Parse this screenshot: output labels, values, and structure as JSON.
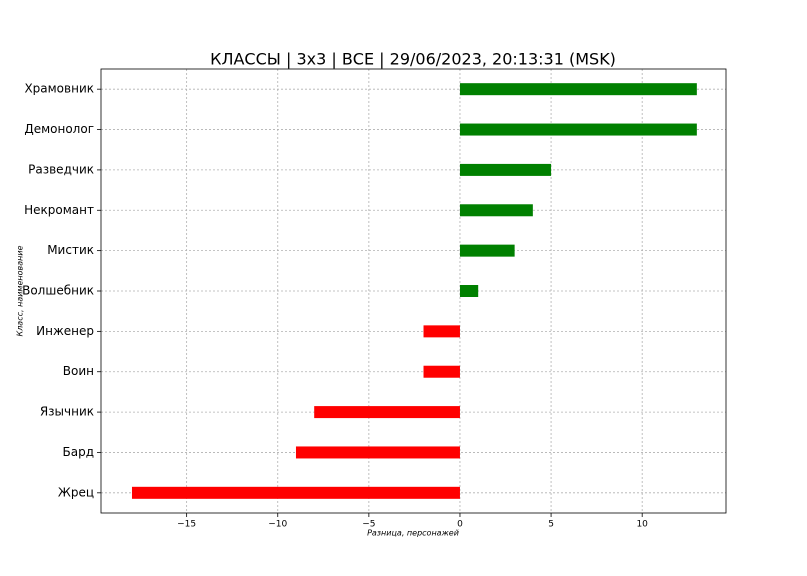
{
  "chart_data": {
    "type": "barh",
    "title": "КЛАССЫ | 3х3 | ВСЕ | 29/06/2023, 20:13:31 (MSK)",
    "xlabel": "Разница, персонажей",
    "ylabel": "Класс, наименование",
    "categories": [
      "Храмовник",
      "Демонолог",
      "Разведчик",
      "Некромант",
      "Мистик",
      "Волшебник",
      "Инженер",
      "Воин",
      "Язычник",
      "Бард",
      "Жрец"
    ],
    "values": [
      13,
      13,
      5,
      4,
      3,
      1,
      -2,
      -2,
      -8,
      -9,
      -18
    ],
    "colors": [
      "#008000",
      "#008000",
      "#008000",
      "#008000",
      "#008000",
      "#008000",
      "#ff0000",
      "#ff0000",
      "#ff0000",
      "#ff0000",
      "#ff0000"
    ],
    "xlim": [
      -19.7,
      14.6
    ],
    "xticks": [
      {
        "value": -15,
        "label": "−15"
      },
      {
        "value": -10,
        "label": "−10"
      },
      {
        "value": -5,
        "label": "−5"
      },
      0,
      5,
      10
    ],
    "grid": true
  }
}
